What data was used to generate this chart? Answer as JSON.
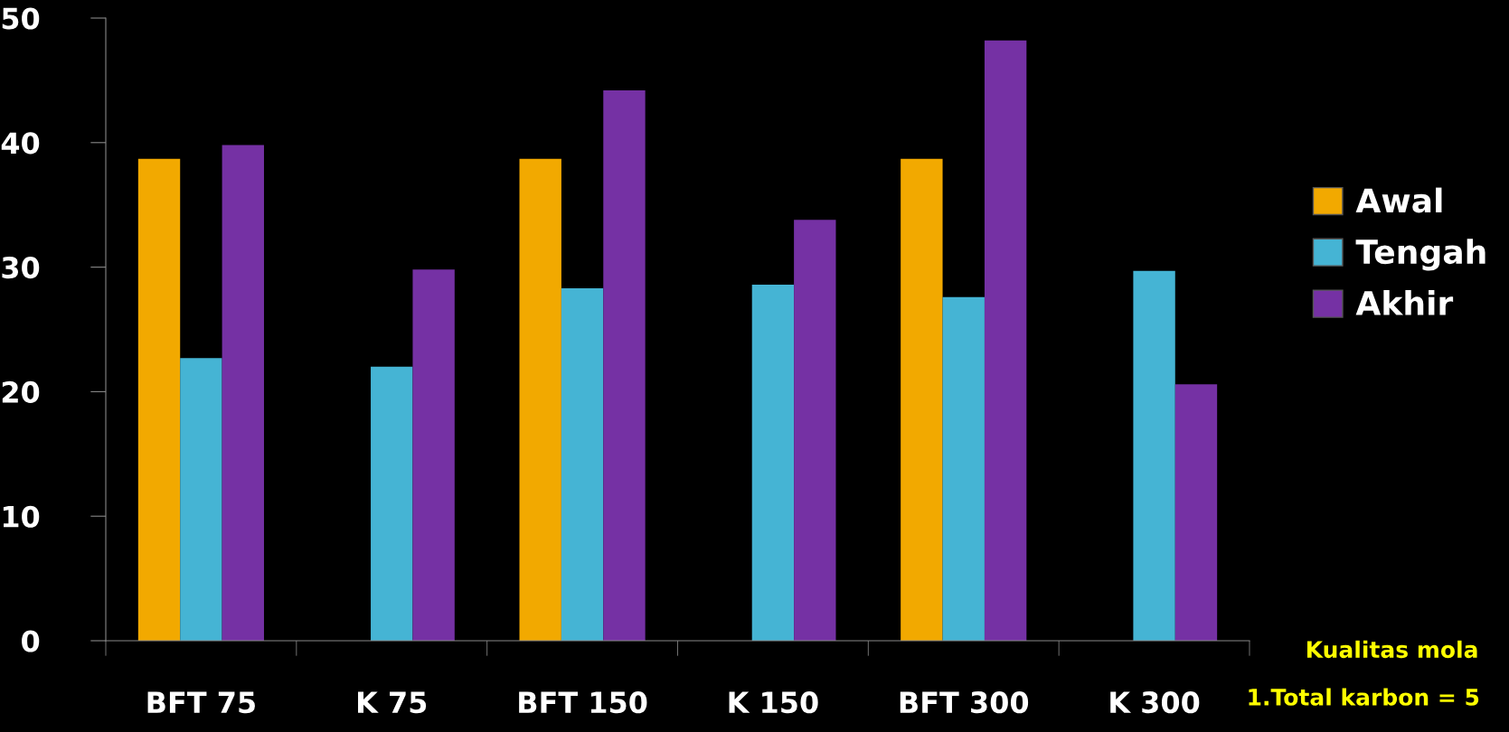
{
  "chart_data": {
    "type": "bar",
    "categories": [
      "BFT 75",
      "K 75",
      "BFT 150",
      "K 150",
      "BFT 300",
      "K 300"
    ],
    "series": [
      {
        "name": "Awal",
        "color": "#f2a900",
        "values": [
          38.7,
          null,
          38.7,
          null,
          38.7,
          null
        ]
      },
      {
        "name": "Tengah",
        "color": "#45b4d4",
        "values": [
          22.7,
          22.0,
          28.3,
          28.6,
          27.6,
          29.7
        ]
      },
      {
        "name": "Akhir",
        "color": "#7531a4",
        "values": [
          39.8,
          29.8,
          44.2,
          33.8,
          48.2,
          20.6
        ]
      }
    ],
    "ylim": [
      0,
      50
    ],
    "yticks": [
      0,
      10,
      20,
      30,
      40,
      50
    ],
    "grid": false,
    "legend": "right",
    "annotations": [
      "Kualitas mola",
      "1.Total karbon = 5"
    ]
  }
}
